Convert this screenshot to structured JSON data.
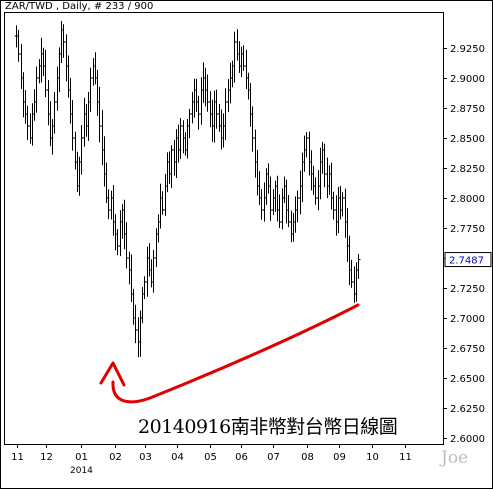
{
  "chart_data": {
    "type": "ohlc",
    "header": "ZAR/TWD , Daily, # 233 / 900",
    "caption": "20140916南非幣對台幣日線圖",
    "watermark": "Joe",
    "year_label": "2014",
    "ylim": [
      2.595,
      2.955
    ],
    "y_ticks": [
      2.6,
      2.625,
      2.65,
      2.675,
      2.7,
      2.725,
      2.75,
      2.775,
      2.8,
      2.825,
      2.85,
      2.875,
      2.9,
      2.925
    ],
    "y_tick_labels": [
      "2.6000",
      "2.6250",
      "2.6500",
      "2.6750",
      "2.7000",
      "2.7250",
      "2.7500",
      "2.7750",
      "2.8000",
      "2.8250",
      "2.8500",
      "2.8750",
      "2.9000",
      "2.9250"
    ],
    "x_labels": [
      "11",
      "12",
      "01",
      "02",
      "03",
      "04",
      "05",
      "06",
      "07",
      "08",
      "09",
      "10",
      "11"
    ],
    "last_price": "2.7487",
    "series_close": [
      2.935,
      2.92,
      2.9,
      2.88,
      2.87,
      2.86,
      2.85,
      2.87,
      2.88,
      2.9,
      2.91,
      2.92,
      2.91,
      2.89,
      2.87,
      2.85,
      2.86,
      2.88,
      2.9,
      2.92,
      2.94,
      2.93,
      2.91,
      2.89,
      2.87,
      2.85,
      2.83,
      2.81,
      2.83,
      2.85,
      2.87,
      2.86,
      2.88,
      2.9,
      2.91,
      2.9,
      2.88,
      2.86,
      2.84,
      2.82,
      2.8,
      2.79,
      2.8,
      2.78,
      2.77,
      2.76,
      2.78,
      2.79,
      2.77,
      2.75,
      2.74,
      2.72,
      2.7,
      2.69,
      2.68,
      2.7,
      2.72,
      2.73,
      2.75,
      2.74,
      2.73,
      2.75,
      2.77,
      2.78,
      2.8,
      2.79,
      2.81,
      2.83,
      2.82,
      2.84,
      2.83,
      2.85,
      2.84,
      2.86,
      2.85,
      2.84,
      2.86,
      2.87,
      2.88,
      2.89,
      2.88,
      2.87,
      2.89,
      2.9,
      2.89,
      2.88,
      2.87,
      2.86,
      2.88,
      2.87,
      2.86,
      2.85,
      2.86,
      2.88,
      2.89,
      2.9,
      2.91,
      2.93,
      2.92,
      2.91,
      2.92,
      2.91,
      2.9,
      2.89,
      2.87,
      2.85,
      2.83,
      2.81,
      2.8,
      2.79,
      2.8,
      2.82,
      2.81,
      2.79,
      2.8,
      2.81,
      2.79,
      2.78,
      2.8,
      2.81,
      2.79,
      2.78,
      2.77,
      2.78,
      2.79,
      2.8,
      2.81,
      2.83,
      2.84,
      2.85,
      2.83,
      2.82,
      2.81,
      2.8,
      2.81,
      2.83,
      2.84,
      2.82,
      2.81,
      2.82,
      2.8,
      2.79,
      2.78,
      2.8,
      2.79,
      2.8,
      2.78,
      2.76,
      2.74,
      2.73,
      2.72,
      2.74,
      2.7487
    ]
  }
}
